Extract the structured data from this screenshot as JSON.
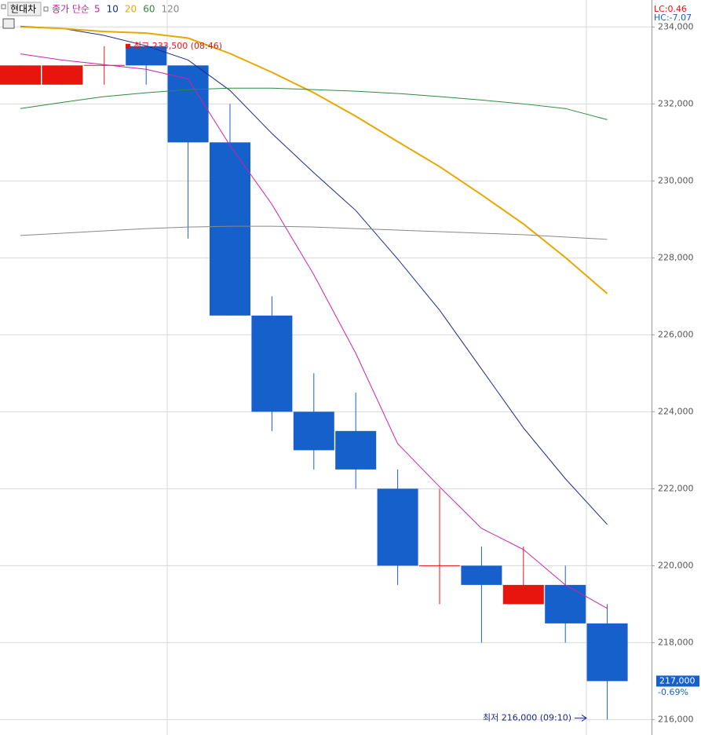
{
  "chart_data": {
    "type": "candlestick",
    "stock_name": "현대차",
    "ma_label": "종가 단순",
    "open": [
      232500,
      232500,
      233000,
      233500,
      233000,
      231000,
      226500,
      224000,
      223500,
      222000,
      220000,
      220000,
      219000,
      219500,
      218500
    ],
    "high": [
      233000,
      233000,
      233500,
      233500,
      233000,
      232000,
      227000,
      225000,
      224500,
      222500,
      222000,
      220500,
      220500,
      220000,
      219000
    ],
    "low": [
      232500,
      232500,
      232500,
      232500,
      228500,
      226500,
      223500,
      222500,
      222000,
      219500,
      219000,
      218000,
      219000,
      218000,
      216000
    ],
    "close": [
      233000,
      233000,
      233000,
      233000,
      231000,
      226500,
      224000,
      223000,
      222500,
      220000,
      220000,
      219500,
      219500,
      218500,
      217000
    ],
    "up_color": "#e8150f",
    "down_color": "#1660cc",
    "series": [
      {
        "name": "5",
        "color": "#cc22aa",
        "values": [
          233300,
          233140,
          233020,
          232900,
          232650,
          230920,
          229390,
          227560,
          225520,
          223170,
          222050,
          220970,
          220420,
          219500,
          218890
        ]
      },
      {
        "name": "10",
        "color": "#1a2a88",
        "values": [
          234020,
          233960,
          233780,
          233510,
          233140,
          232350,
          231230,
          230210,
          229230,
          227970,
          226640,
          225110,
          223580,
          222260,
          221070
        ]
      },
      {
        "name": "20",
        "color": "#e8a800",
        "values": [
          234000,
          233960,
          233880,
          233840,
          233710,
          233310,
          232820,
          232290,
          231680,
          231020,
          230370,
          229640,
          228880,
          228010,
          227070
        ]
      },
      {
        "name": "60",
        "color": "#2e8b3e",
        "values": [
          231880,
          232040,
          232190,
          232290,
          232370,
          232410,
          232410,
          232370,
          232330,
          232270,
          232190,
          232100,
          232000,
          231880,
          231590
        ]
      },
      {
        "name": "120",
        "color": "#888888",
        "values": [
          228580,
          228640,
          228700,
          228760,
          228800,
          228820,
          228820,
          228800,
          228760,
          228720,
          228680,
          228640,
          228600,
          228540,
          228480
        ]
      }
    ],
    "ylim": [
      215600,
      234700
    ],
    "yticks": [
      {
        "value": 216000,
        "label": "216,000"
      },
      {
        "value": 218000,
        "label": "218,000"
      },
      {
        "value": 220000,
        "label": "220,000"
      },
      {
        "value": 222000,
        "label": "222,000"
      },
      {
        "value": 224000,
        "label": "224,000"
      },
      {
        "value": 226000,
        "label": "226,000"
      },
      {
        "value": 228000,
        "label": "228,000"
      },
      {
        "value": 230000,
        "label": "230,000"
      },
      {
        "value": 232000,
        "label": "232,000"
      },
      {
        "value": 234000,
        "label": "234,000"
      }
    ],
    "grid": true,
    "high_annotation": "최고 233,500 (08:46)",
    "low_annotation": "최저 216,000 (09:10)",
    "lc_label": "LC:0.46",
    "hc_label": "HC:-7.07",
    "last_price": {
      "value": 217000,
      "label": "217,000"
    },
    "change_label": "-0.69%"
  }
}
